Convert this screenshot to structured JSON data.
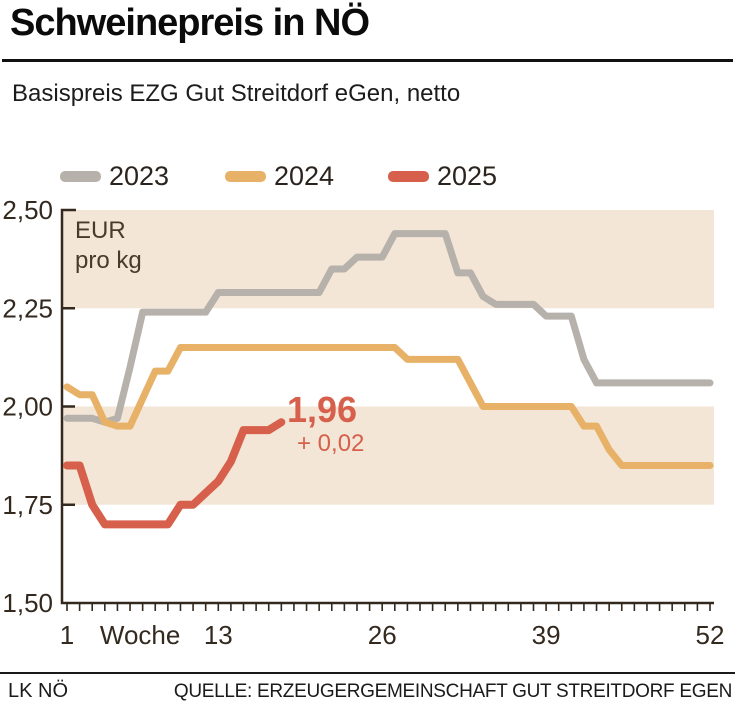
{
  "header": {
    "title": "Schweinepreis in NÖ",
    "subtitle": "Basispreis EZG Gut Streitdorf eGen, netto"
  },
  "legend": {
    "items": [
      {
        "label": "2023",
        "color": "#b7b1ac"
      },
      {
        "label": "2024",
        "color": "#e7b267"
      },
      {
        "label": "2025",
        "color": "#d6604b"
      }
    ]
  },
  "chart_data": {
    "type": "line",
    "title": "Schweinepreis in NÖ",
    "unit_label_lines": [
      "EUR",
      "pro kg"
    ],
    "x_axis_label": "Woche",
    "x_axis_label_week": 6.8,
    "xlabel": "Woche",
    "ylabel": "EUR pro kg",
    "xlim": [
      1,
      52
    ],
    "ylim": [
      1.5,
      2.5
    ],
    "band_color": "#f3e6d6",
    "axis_color": "#33291f",
    "bands": [
      {
        "from": 2.25,
        "to": 2.5
      },
      {
        "from": 1.75,
        "to": 2.0
      }
    ],
    "yticks": [
      {
        "value": 2.5,
        "label": "2,50"
      },
      {
        "value": 2.25,
        "label": "2,25"
      },
      {
        "value": 2.0,
        "label": "2,00"
      },
      {
        "value": 1.75,
        "label": "1,75"
      },
      {
        "value": 1.5,
        "label": "1,50"
      }
    ],
    "xticks": [
      {
        "value": 1,
        "label": "1"
      },
      {
        "value": 13,
        "label": "13"
      },
      {
        "value": 26,
        "label": "26"
      },
      {
        "value": 39,
        "label": "39"
      },
      {
        "value": 52,
        "label": "52"
      }
    ],
    "minor_xtick_every": 1,
    "legend_position": "top",
    "grid": false,
    "series": [
      {
        "name": "2023",
        "color": "#b7b1ac",
        "stroke_width": 7,
        "start_week": 1,
        "values": [
          1.97,
          1.97,
          1.97,
          1.96,
          1.97,
          2.1,
          2.24,
          2.24,
          2.24,
          2.24,
          2.24,
          2.24,
          2.29,
          2.29,
          2.29,
          2.29,
          2.29,
          2.29,
          2.29,
          2.29,
          2.29,
          2.35,
          2.35,
          2.38,
          2.38,
          2.38,
          2.44,
          2.44,
          2.44,
          2.44,
          2.44,
          2.34,
          2.34,
          2.28,
          2.26,
          2.26,
          2.26,
          2.26,
          2.23,
          2.23,
          2.23,
          2.12,
          2.06,
          2.06,
          2.06,
          2.06,
          2.06,
          2.06,
          2.06,
          2.06,
          2.06,
          2.06
        ]
      },
      {
        "name": "2024",
        "color": "#e7b267",
        "stroke_width": 7,
        "start_week": 1,
        "values": [
          2.05,
          2.03,
          2.03,
          1.96,
          1.95,
          1.95,
          2.02,
          2.09,
          2.09,
          2.15,
          2.15,
          2.15,
          2.15,
          2.15,
          2.15,
          2.15,
          2.15,
          2.15,
          2.15,
          2.15,
          2.15,
          2.15,
          2.15,
          2.15,
          2.15,
          2.15,
          2.15,
          2.12,
          2.12,
          2.12,
          2.12,
          2.12,
          2.06,
          2.0,
          2.0,
          2.0,
          2.0,
          2.0,
          2.0,
          2.0,
          2.0,
          1.95,
          1.95,
          1.89,
          1.85,
          1.85,
          1.85,
          1.85,
          1.85,
          1.85,
          1.85,
          1.85
        ]
      },
      {
        "name": "2025",
        "color": "#d6604b",
        "stroke_width": 8,
        "start_week": 1,
        "values": [
          1.85,
          1.85,
          1.75,
          1.7,
          1.7,
          1.7,
          1.7,
          1.7,
          1.7,
          1.75,
          1.75,
          1.78,
          1.81,
          1.86,
          1.94,
          1.94,
          1.94,
          1.96
        ]
      }
    ],
    "annotation": {
      "value": "1,96",
      "delta": "+ 0,02",
      "color": "#d6604b"
    }
  },
  "footer": {
    "left": "LK NÖ",
    "right": "QUELLE: ERZEUGERGEMEINSCHAFT GUT STREITDORF EGEN"
  }
}
